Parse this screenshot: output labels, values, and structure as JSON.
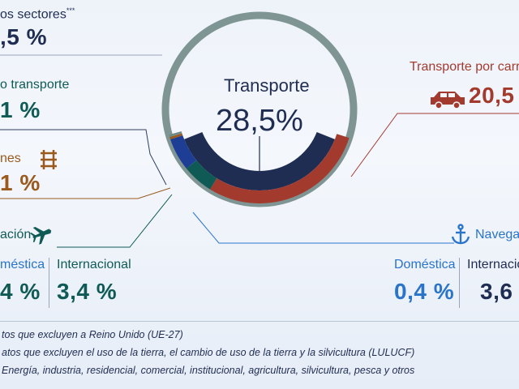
{
  "chart_data": {
    "type": "pie",
    "center": {
      "title": "Transporte",
      "value": "28,5%"
    },
    "slices": [
      {
        "name": "Transporte por carretera",
        "value": 20.5,
        "color": "#a33a2e"
      },
      {
        "name": "Aviación",
        "value": 3.8,
        "color": "#0f5a55"
      },
      {
        "name": "Navegación",
        "value": 4.0,
        "color": "#1e3e96"
      },
      {
        "name": "Ferrocarriles",
        "value": 0.1,
        "color": "#9a5a1e"
      },
      {
        "name": "Otro transporte",
        "value": 0.1,
        "color": "#6f8a86"
      }
    ],
    "remainder_color": "#7e9594",
    "inner_arc_color": "#1f2d52"
  },
  "labels": {
    "otros_sectores": {
      "text": "os sectores",
      "sup": "***",
      "value": ",5 %"
    },
    "otro_transporte": {
      "text": "o transporte",
      "value": "1 %"
    },
    "ferrocarriles": {
      "text": "nes",
      "value": "1 %"
    },
    "aviacion": {
      "text": "ación",
      "domestica_label": "méstica",
      "domestica_value": "4 %",
      "internacional_label": "Internacional",
      "internacional_value": "3,4 %"
    },
    "carretera": {
      "text": "Transporte por carret",
      "value": "20,5"
    },
    "navegacion": {
      "text": "Navegac",
      "domestica_label": "Doméstica",
      "domestica_value": "0,4 %",
      "internacional_label": "Internacio",
      "internacional_value": "3,6"
    }
  },
  "footnotes": [
    "tos que excluyen a Reino Unido (UE-27)",
    "atos que excluyen el uso de la tierra, el cambio de uso de la tierra y la silvicultura (LULUCF)",
    "Energía, industria, residencial, comercial, institucional, agricultura, silvicultura, pesca y otros"
  ],
  "colors": {
    "navy": "#1f2d52",
    "teal": "#0f5a55",
    "brown": "#9a5a1e",
    "red": "#a33a2e",
    "blue": "#2a74c9",
    "ring": "#7e9594"
  },
  "icons": {
    "car": "car-icon",
    "train": "train-track-icon",
    "plane": "airplane-icon",
    "anchor": "anchor-icon"
  }
}
